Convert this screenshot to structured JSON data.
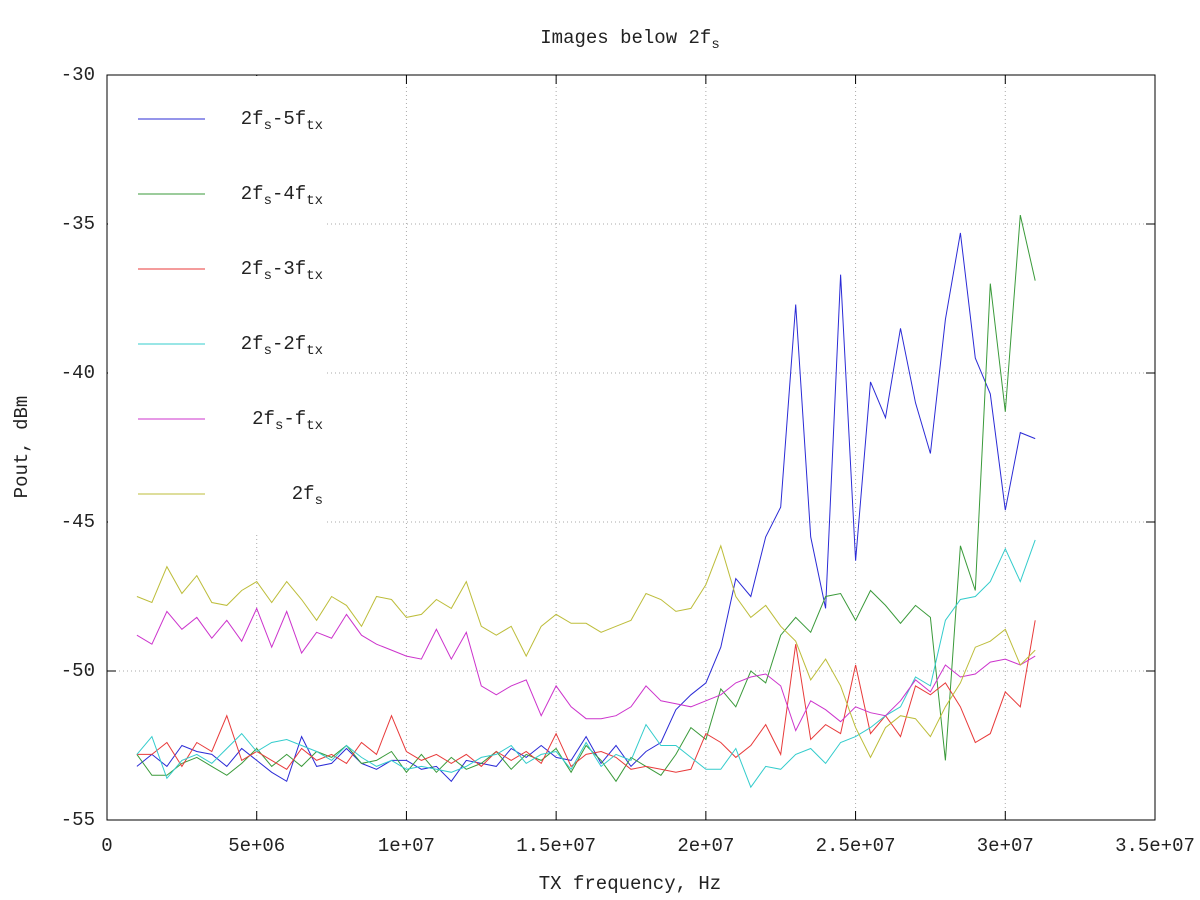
{
  "chart_data": {
    "type": "line",
    "title": [
      "Images below 2f",
      "s"
    ],
    "xlabel": "TX frequency, Hz",
    "ylabel": "Pout, dBm",
    "x": [
      1000000,
      1500000,
      2000000,
      2500000,
      3000000,
      3500000,
      4000000,
      4500000,
      5000000,
      5500000,
      6000000,
      6500000,
      7000000,
      7500000,
      8000000,
      8500000,
      9000000,
      9500000,
      10000000,
      10500000,
      11000000,
      11500000,
      12000000,
      12500000,
      13000000,
      13500000,
      14000000,
      14500000,
      15000000,
      15500000,
      16000000,
      16500000,
      17000000,
      17500000,
      18000000,
      18500000,
      19000000,
      19500000,
      20000000,
      20500000,
      21000000,
      21500000,
      22000000,
      22500000,
      23000000,
      23500000,
      24000000,
      24500000,
      25000000,
      25500000,
      26000000,
      26500000,
      27000000,
      27500000,
      28000000,
      28500000,
      29000000,
      29500000,
      30000000,
      30500000,
      31000000
    ],
    "series": [
      {
        "name": [
          "2f",
          "s",
          "-5f",
          "tx"
        ],
        "color": "#2b2bd6",
        "values": [
          -53.2,
          -52.8,
          -53.2,
          -52.5,
          -52.7,
          -52.8,
          -53.2,
          -52.6,
          -53,
          -53.4,
          -53.7,
          -52.2,
          -53.2,
          -53.1,
          -52.6,
          -53.1,
          -53.3,
          -53,
          -53,
          -53.3,
          -53.2,
          -53.7,
          -53,
          -53.1,
          -53.2,
          -52.6,
          -52.9,
          -52.5,
          -52.9,
          -53,
          -52.2,
          -53.1,
          -52.5,
          -53.2,
          -52.7,
          -52.4,
          -51.3,
          -50.8,
          -50.4,
          -49.2,
          -46.9,
          -47.5,
          -45.5,
          -44.5,
          -37.7,
          -45.5,
          -47.9,
          -36.7,
          -46.3,
          -40.3,
          -41.5,
          -38.5,
          -41,
          -42.7,
          -38.2,
          -35.3,
          -39.5,
          -40.7,
          -44.6,
          -42,
          -42.2
        ]
      },
      {
        "name": [
          "2f",
          "s",
          "-4f",
          "tx"
        ],
        "color": "#3a9a3a",
        "values": [
          -52.8,
          -53.5,
          -53.5,
          -53.1,
          -52.9,
          -53.2,
          -53.5,
          -53.1,
          -52.6,
          -53.2,
          -52.8,
          -53.2,
          -52.7,
          -52.9,
          -52.5,
          -53.1,
          -53,
          -52.7,
          -53.4,
          -52.8,
          -53.4,
          -52.9,
          -53.3,
          -53.1,
          -52.7,
          -53.3,
          -52.8,
          -53,
          -52.6,
          -53.4,
          -52.5,
          -53,
          -53.7,
          -52.9,
          -53.2,
          -53.5,
          -52.8,
          -51.9,
          -52.3,
          -50.6,
          -51.2,
          -50,
          -50.4,
          -48.8,
          -48.2,
          -48.7,
          -47.5,
          -47.4,
          -48.3,
          -47.3,
          -47.8,
          -48.4,
          -47.8,
          -48.2,
          -53,
          -45.8,
          -47.3,
          -37,
          -41.3,
          -34.7,
          -36.9
        ]
      },
      {
        "name": [
          "2f",
          "s",
          "-3f",
          "tx"
        ],
        "color": "#e83a3a",
        "values": [
          -52.8,
          -52.8,
          -52.4,
          -53.2,
          -52.4,
          -52.7,
          -51.5,
          -53,
          -52.7,
          -53,
          -53.3,
          -52.6,
          -53,
          -52.8,
          -53.1,
          -52.4,
          -52.8,
          -51.5,
          -52.7,
          -53,
          -52.8,
          -53.1,
          -52.8,
          -53.2,
          -52.7,
          -53,
          -52.7,
          -53.1,
          -52.1,
          -53.2,
          -52.8,
          -52.7,
          -52.9,
          -53.3,
          -53.2,
          -53.3,
          -53.4,
          -53.3,
          -52.1,
          -52.4,
          -52.9,
          -52.5,
          -51.8,
          -52.8,
          -49.1,
          -52.3,
          -51.8,
          -52.1,
          -49.8,
          -52.1,
          -51.5,
          -52.2,
          -50.5,
          -50.8,
          -50.4,
          -51.2,
          -52.4,
          -52.1,
          -50.7,
          -51.2,
          -48.3
        ]
      },
      {
        "name": [
          "2f",
          "s",
          "-2f",
          "tx"
        ],
        "color": "#33cccc",
        "values": [
          -52.8,
          -52.2,
          -53.6,
          -53,
          -52.8,
          -53.1,
          -52.6,
          -52.1,
          -52.7,
          -52.4,
          -52.3,
          -52.5,
          -52.7,
          -53,
          -52.5,
          -52.9,
          -53.2,
          -53,
          -53.3,
          -53.2,
          -53.3,
          -53.4,
          -53.2,
          -52.9,
          -52.8,
          -52.5,
          -53.1,
          -52.8,
          -52.7,
          -53.3,
          -52.4,
          -53.2,
          -52.8,
          -53,
          -51.8,
          -52.5,
          -52.5,
          -52.9,
          -53.3,
          -53.3,
          -52.6,
          -53.9,
          -53.2,
          -53.3,
          -52.8,
          -52.6,
          -53.1,
          -52.4,
          -52.2,
          -51.9,
          -51.5,
          -51.2,
          -50.2,
          -50.5,
          -48.3,
          -47.6,
          -47.5,
          -47,
          -45.9,
          -47,
          -45.6
        ]
      },
      {
        "name": [
          "2f",
          "s",
          "-f",
          "tx"
        ],
        "color": "#cc33cc",
        "values": [
          -48.8,
          -49.1,
          -48,
          -48.6,
          -48.2,
          -48.9,
          -48.3,
          -49,
          -47.9,
          -49.2,
          -48,
          -49.4,
          -48.7,
          -48.9,
          -48.1,
          -48.8,
          -49.1,
          -49.3,
          -49.5,
          -49.6,
          -48.6,
          -49.6,
          -48.7,
          -50.5,
          -50.8,
          -50.5,
          -50.3,
          -51.5,
          -50.5,
          -51.2,
          -51.6,
          -51.6,
          -51.5,
          -51.2,
          -50.5,
          -51,
          -51.1,
          -51.2,
          -51,
          -50.8,
          -50.4,
          -50.2,
          -50.1,
          -50.5,
          -52,
          -51,
          -51.3,
          -51.7,
          -51.2,
          -51.4,
          -51.5,
          -51,
          -50.3,
          -50.7,
          -49.8,
          -50.2,
          -50.1,
          -49.7,
          -49.6,
          -49.8,
          -49.5
        ]
      },
      {
        "name": [
          "2f",
          "s"
        ],
        "color": "#bdbd3a",
        "values": [
          -47.5,
          -47.7,
          -46.5,
          -47.4,
          -46.8,
          -47.7,
          -47.8,
          -47.3,
          -47,
          -47.7,
          -47,
          -47.6,
          -48.3,
          -47.5,
          -47.8,
          -48.5,
          -47.5,
          -47.6,
          -48.2,
          -48.1,
          -47.6,
          -47.9,
          -47,
          -48.5,
          -48.8,
          -48.5,
          -49.5,
          -48.5,
          -48.1,
          -48.4,
          -48.4,
          -48.7,
          -48.5,
          -48.3,
          -47.4,
          -47.6,
          -48,
          -47.9,
          -47.1,
          -45.8,
          -47.5,
          -48.2,
          -47.8,
          -48.5,
          -49,
          -50.3,
          -49.6,
          -50.5,
          -51.9,
          -52.9,
          -51.9,
          -51.5,
          -51.6,
          -52.2,
          -51.2,
          -50.4,
          -49.2,
          -49,
          -48.6,
          -49.8,
          -49.3
        ]
      }
    ],
    "xlim": [
      0,
      35000000
    ],
    "xticks": [
      0,
      {
        "value": 5000000,
        "label": "5e+06"
      },
      {
        "value": 10000000,
        "label": "1e+07"
      },
      {
        "value": 15000000,
        "label": "1.5e+07"
      },
      {
        "value": 20000000,
        "label": "2e+07"
      },
      {
        "value": 25000000,
        "label": "2.5e+07"
      },
      {
        "value": 30000000,
        "label": "3e+07"
      },
      {
        "value": 35000000,
        "label": "3.5e+07"
      }
    ],
    "ylim": [
      -55,
      -30
    ],
    "yticks": [
      -55,
      -50,
      -45,
      -40,
      -35,
      -30
    ],
    "grid": true,
    "legend": "upper-left"
  }
}
